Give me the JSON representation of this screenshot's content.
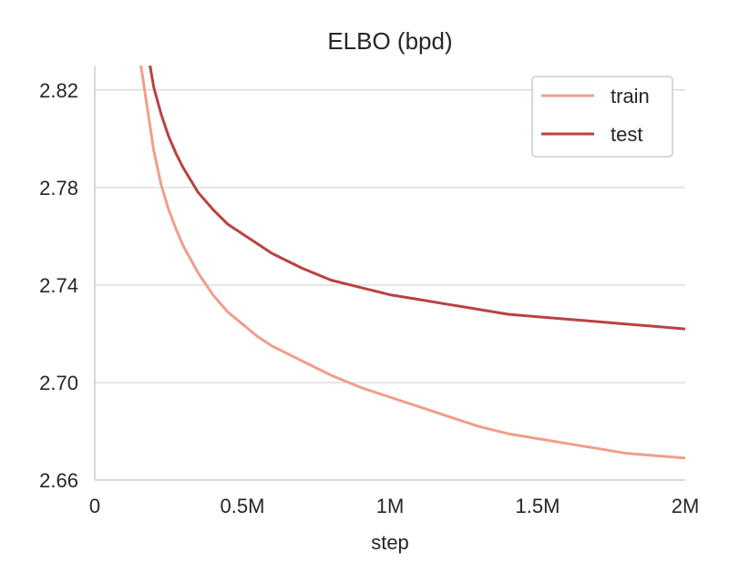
{
  "chart_data": {
    "type": "line",
    "title": "ELBO (bpd)",
    "xlabel": "step",
    "ylabel": "",
    "xlim": [
      0,
      2000000
    ],
    "ylim": [
      2.66,
      2.83
    ],
    "xticks": [
      0,
      500000,
      1000000,
      1500000,
      2000000
    ],
    "xtick_labels": [
      "0",
      "0.5M",
      "1M",
      "1.5M",
      "2M"
    ],
    "yticks": [
      2.66,
      2.7,
      2.74,
      2.78,
      2.82
    ],
    "ytick_labels": [
      "2.66",
      "2.70",
      "2.74",
      "2.78",
      "2.82"
    ],
    "grid": "horizontal",
    "legend_position": "top-right",
    "series": [
      {
        "name": "train",
        "color": "#ef9f8a",
        "x": [
          150000,
          175000,
          200000,
          225000,
          250000,
          275000,
          300000,
          350000,
          400000,
          450000,
          500000,
          550000,
          600000,
          700000,
          800000,
          900000,
          1000000,
          1100000,
          1200000,
          1300000,
          1400000,
          1500000,
          1600000,
          1700000,
          1800000,
          1900000,
          2000000
        ],
        "y": [
          2.835,
          2.815,
          2.795,
          2.781,
          2.771,
          2.763,
          2.756,
          2.745,
          2.736,
          2.729,
          2.724,
          2.719,
          2.715,
          2.709,
          2.703,
          2.698,
          2.694,
          2.69,
          2.686,
          2.682,
          2.679,
          2.677,
          2.675,
          2.673,
          2.671,
          2.67,
          2.669
        ]
      },
      {
        "name": "test",
        "color": "#b94242",
        "x": [
          180000,
          200000,
          225000,
          250000,
          275000,
          300000,
          350000,
          400000,
          450000,
          500000,
          550000,
          600000,
          700000,
          800000,
          900000,
          1000000,
          1100000,
          1200000,
          1300000,
          1400000,
          1500000,
          1600000,
          1700000,
          1800000,
          1900000,
          2000000
        ],
        "y": [
          2.835,
          2.821,
          2.81,
          2.801,
          2.794,
          2.788,
          2.778,
          2.771,
          2.765,
          2.761,
          2.757,
          2.753,
          2.747,
          2.742,
          2.739,
          2.736,
          2.734,
          2.732,
          2.73,
          2.728,
          2.727,
          2.726,
          2.725,
          2.724,
          2.723,
          2.722
        ]
      }
    ]
  }
}
